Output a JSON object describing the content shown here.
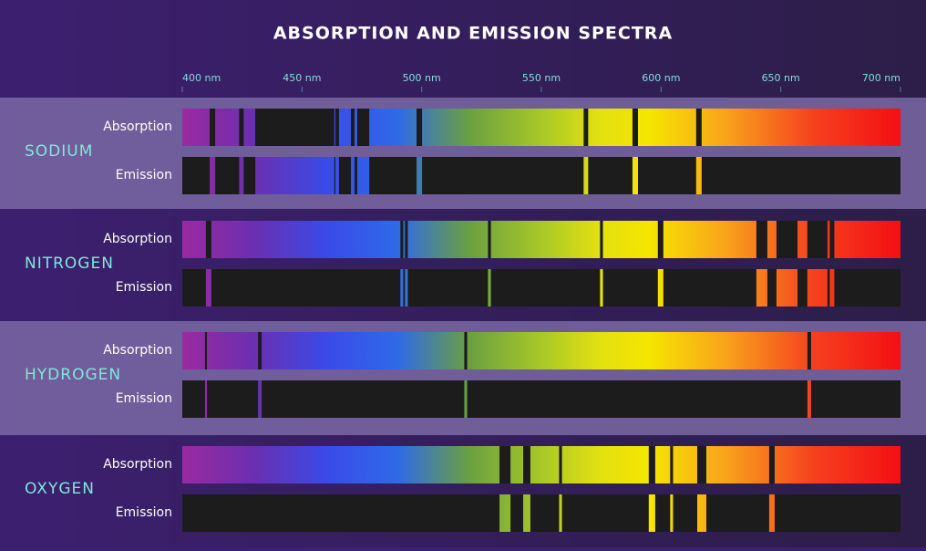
{
  "title": "ABSORPTION AND EMISSION SPECTRA",
  "axis": {
    "xlim": [
      400,
      700
    ],
    "ticks": [
      {
        "value": 400,
        "label": "400 nm"
      },
      {
        "value": 450,
        "label": "450 nm"
      },
      {
        "value": 500,
        "label": "500 nm"
      },
      {
        "value": 550,
        "label": "550 nm"
      },
      {
        "value": 600,
        "label": "600 nm"
      },
      {
        "value": 650,
        "label": "650 nm"
      },
      {
        "value": 700,
        "label": "700 nm"
      }
    ]
  },
  "row_labels": [
    "Absorption",
    "Emission"
  ],
  "elements": [
    {
      "name": "SODIUM",
      "lines": [
        {
          "nm": 412.6,
          "width": 2.3
        },
        {
          "nm": 424.7,
          "width": 1.9
        },
        {
          "nm": 447.0,
          "width": 33
        },
        {
          "nm": 464.7,
          "width": 1.5
        },
        {
          "nm": 471.2,
          "width": 1.5
        },
        {
          "nm": 475.6,
          "width": 5
        },
        {
          "nm": 499.0,
          "width": 2.3
        },
        {
          "nm": 568.6,
          "width": 1.9
        },
        {
          "nm": 589.2,
          "width": 2.3
        },
        {
          "nm": 615.8,
          "width": 2.3
        }
      ]
    },
    {
      "name": "NITROGEN",
      "lines": [
        {
          "nm": 411.0,
          "width": 2.3
        },
        {
          "nm": 491.7,
          "width": 1.2
        },
        {
          "nm": 493.6,
          "width": 1.2
        },
        {
          "nm": 528.3,
          "width": 1.2
        },
        {
          "nm": 575.1,
          "width": 1.2
        },
        {
          "nm": 599.8,
          "width": 2.3
        },
        {
          "nm": 642.1,
          "width": 4.6
        },
        {
          "nm": 652.6,
          "width": 8.8
        },
        {
          "nm": 665.3,
          "width": 8.4
        },
        {
          "nm": 671.4,
          "width": 1.9
        }
      ]
    },
    {
      "name": "HYDROGEN",
      "lines": [
        {
          "nm": 409.9,
          "width": 0.8
        },
        {
          "nm": 432.4,
          "width": 1.5
        },
        {
          "nm": 518.4,
          "width": 1.2
        },
        {
          "nm": 661.9,
          "width": 1.5
        }
      ]
    },
    {
      "name": "OXYGEN",
      "lines": [
        {
          "nm": 534.8,
          "width": 4.6
        },
        {
          "nm": 543.9,
          "width": 3
        },
        {
          "nm": 558.0,
          "width": 1.2
        },
        {
          "nm": 596.2,
          "width": 2.7
        },
        {
          "nm": 604.4,
          "width": 1.2
        },
        {
          "nm": 617.0,
          "width": 3.8
        },
        {
          "nm": 646.3,
          "width": 2.3
        }
      ]
    }
  ]
}
